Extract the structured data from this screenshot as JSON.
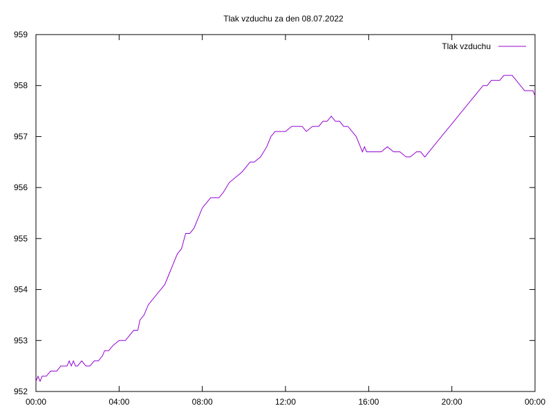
{
  "chart_data": {
    "type": "line",
    "title": "Tlak vzduchu za den 08.07.2022",
    "xlabel": "",
    "ylabel": "",
    "x_ticks": [
      "00:00",
      "04:00",
      "08:00",
      "12:00",
      "16:00",
      "20:00",
      "00:00"
    ],
    "y_ticks": [
      "952",
      "953",
      "954",
      "955",
      "956",
      "957",
      "958",
      "959"
    ],
    "xlim": [
      0,
      24
    ],
    "ylim": [
      952,
      959
    ],
    "grid": false,
    "legend_position": "top-right",
    "series": [
      {
        "name": "Tlak vzduchu",
        "color": "#9400d3",
        "x": [
          0.0,
          0.1,
          0.2,
          0.3,
          0.4,
          0.5,
          0.7,
          0.9,
          1.0,
          1.2,
          1.5,
          1.6,
          1.7,
          1.8,
          1.9,
          2.0,
          2.2,
          2.4,
          2.6,
          2.8,
          3.0,
          3.2,
          3.3,
          3.5,
          3.7,
          4.0,
          4.3,
          4.5,
          4.7,
          4.9,
          5.0,
          5.2,
          5.4,
          5.6,
          5.8,
          6.0,
          6.2,
          6.4,
          6.6,
          6.8,
          7.0,
          7.2,
          7.4,
          7.6,
          7.8,
          8.0,
          8.2,
          8.4,
          8.6,
          8.8,
          9.0,
          9.3,
          9.6,
          9.9,
          10.1,
          10.3,
          10.5,
          10.8,
          11.1,
          11.3,
          11.5,
          11.8,
          12.0,
          12.3,
          12.6,
          12.8,
          13.0,
          13.3,
          13.6,
          13.8,
          14.0,
          14.2,
          14.4,
          14.6,
          14.8,
          15.0,
          15.2,
          15.4,
          15.5,
          15.6,
          15.7,
          15.8,
          15.9,
          16.0,
          16.3,
          16.6,
          16.9,
          17.2,
          17.5,
          17.8,
          18.0,
          18.3,
          18.5,
          18.7,
          18.9,
          19.1,
          19.3,
          19.5,
          19.7,
          19.9,
          20.1,
          20.3,
          20.5,
          20.7,
          20.9,
          21.1,
          21.3,
          21.5,
          21.7,
          21.9,
          22.1,
          22.3,
          22.5,
          22.7,
          22.9,
          23.1,
          23.3,
          23.5,
          23.7,
          23.9,
          24.0
        ],
        "values": [
          952.2,
          952.3,
          952.2,
          952.3,
          952.3,
          952.3,
          952.4,
          952.4,
          952.4,
          952.5,
          952.5,
          952.6,
          952.5,
          952.6,
          952.5,
          952.5,
          952.6,
          952.5,
          952.5,
          952.6,
          952.6,
          952.7,
          952.8,
          952.8,
          952.9,
          953.0,
          953.0,
          953.1,
          953.2,
          953.2,
          953.4,
          953.5,
          953.7,
          953.8,
          953.9,
          954.0,
          954.1,
          954.3,
          954.5,
          954.7,
          954.8,
          955.1,
          955.1,
          955.2,
          955.4,
          955.6,
          955.7,
          955.8,
          955.8,
          955.8,
          955.9,
          956.1,
          956.2,
          956.3,
          956.4,
          956.5,
          956.5,
          956.6,
          956.8,
          957.0,
          957.1,
          957.1,
          957.1,
          957.2,
          957.2,
          957.2,
          957.1,
          957.2,
          957.2,
          957.3,
          957.3,
          957.4,
          957.3,
          957.3,
          957.2,
          957.2,
          957.1,
          957.0,
          956.9,
          956.8,
          956.7,
          956.8,
          956.7,
          956.7,
          956.7,
          956.7,
          956.8,
          956.7,
          956.7,
          956.6,
          956.6,
          956.7,
          956.7,
          956.6,
          956.7,
          956.8,
          956.9,
          957.0,
          957.1,
          957.2,
          957.3,
          957.4,
          957.5,
          957.6,
          957.7,
          957.8,
          957.9,
          958.0,
          958.0,
          958.1,
          958.1,
          958.1,
          958.2,
          958.2,
          958.2,
          958.1,
          958.0,
          957.9,
          957.9,
          957.9,
          957.8
        ]
      }
    ]
  }
}
